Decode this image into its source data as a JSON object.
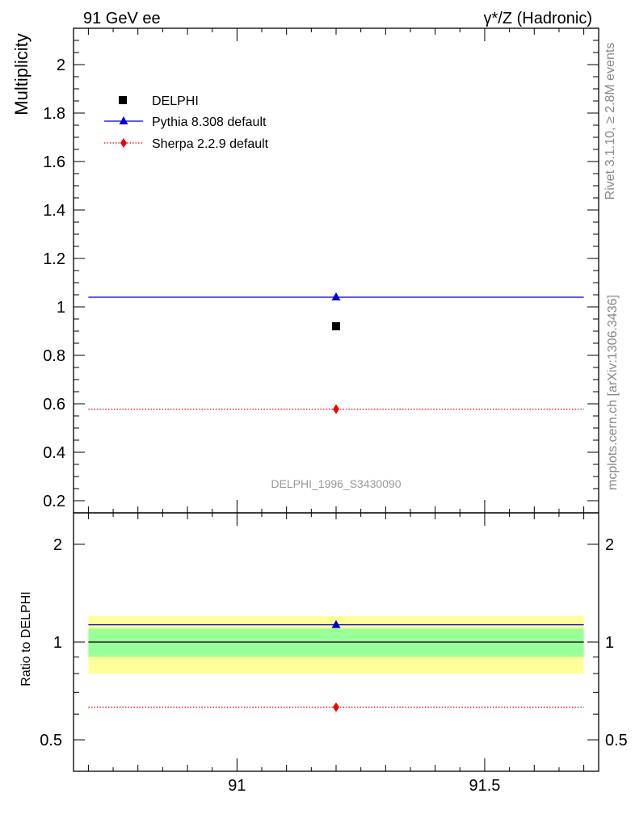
{
  "header": {
    "left": "91 GeV ee",
    "right": "γ*/Z (Hadronic)"
  },
  "side_labels": {
    "rivet": "Rivet 3.1.10, ≥ 2.8M events",
    "mcplots": "mcplots.cern.ch [arXiv:1306.3436]"
  },
  "watermark": "DELPHI_1996_S3430090",
  "colors": {
    "data": "#000000",
    "pythia": "#0000cc",
    "sherpa": "#ee0000",
    "band_inner": "#99ff99",
    "band_outer": "#ffff99"
  },
  "chart_data": [
    {
      "type": "scatter",
      "panel": "main",
      "ylabel": "Multiplicity",
      "xlim": [
        90.67,
        91.73
      ],
      "ylim": [
        0.15,
        2.15
      ],
      "yticks": [
        0.2,
        0.4,
        0.6,
        0.8,
        1,
        1.2,
        1.4,
        1.6,
        1.8,
        2
      ],
      "ytick_labels": [
        "0.2",
        "0.4",
        "0.6",
        "0.8",
        "1",
        "1.2",
        "1.4",
        "1.6",
        "1.8",
        "2"
      ],
      "legend_position": "top-left",
      "series": [
        {
          "name": "DELPHI",
          "marker": "square",
          "x": [
            91.2
          ],
          "y": [
            0.92
          ]
        },
        {
          "name": "Pythia 8.308 default",
          "marker": "triangle",
          "line": "solid",
          "x": [
            91.2
          ],
          "y": [
            1.04
          ],
          "xrange": [
            90.7,
            91.7
          ]
        },
        {
          "name": "Sherpa 2.2.9 default",
          "marker": "diamond",
          "line": "dotted",
          "x": [
            91.2
          ],
          "y": [
            0.578
          ],
          "xrange": [
            90.7,
            91.7
          ]
        }
      ]
    },
    {
      "type": "scatter",
      "panel": "ratio",
      "ylabel": "Ratio to DELPHI",
      "xlim": [
        90.67,
        91.73
      ],
      "ylim": [
        0.4,
        2.5
      ],
      "yscale": "log",
      "yticks": [
        0.5,
        1,
        2
      ],
      "ytick_labels": [
        "0.5",
        "1",
        "2"
      ],
      "xticks": [
        91,
        91.5
      ],
      "xtick_labels": [
        "91",
        "91.5"
      ],
      "bands": {
        "inner": [
          0.9,
          1.1
        ],
        "outer": [
          0.8,
          1.2
        ],
        "xrange": [
          90.7,
          91.7
        ]
      },
      "reference": 1,
      "series": [
        {
          "name": "Pythia 8.308 default",
          "marker": "triangle",
          "line": "solid",
          "x": [
            91.2
          ],
          "y": [
            1.13
          ],
          "xrange": [
            90.7,
            91.7
          ]
        },
        {
          "name": "Sherpa 2.2.9 default",
          "marker": "diamond",
          "line": "dotted",
          "x": [
            91.2
          ],
          "y": [
            0.63
          ],
          "xrange": [
            90.7,
            91.7
          ]
        }
      ]
    }
  ]
}
